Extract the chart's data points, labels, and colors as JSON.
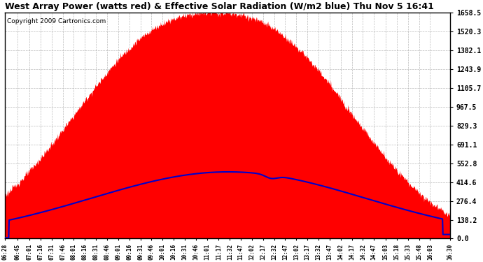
{
  "title": "West Array Power (watts red) & Effective Solar Radiation (W/m2 blue) Thu Nov 5 16:41",
  "copyright": "Copyright 2009 Cartronics.com",
  "background_color": "#ffffff",
  "plot_bg_color": "#ffffff",
  "y_ticks": [
    0.0,
    138.2,
    276.4,
    414.6,
    552.8,
    691.1,
    829.3,
    967.5,
    1105.7,
    1243.9,
    1382.1,
    1520.3,
    1658.5
  ],
  "x_labels": [
    "06:28",
    "06:45",
    "07:01",
    "07:16",
    "07:31",
    "07:46",
    "08:01",
    "08:16",
    "08:31",
    "08:46",
    "09:01",
    "09:16",
    "09:31",
    "09:46",
    "10:01",
    "10:16",
    "10:31",
    "10:46",
    "11:01",
    "11:17",
    "11:32",
    "11:47",
    "12:02",
    "12:17",
    "12:32",
    "12:47",
    "13:02",
    "13:17",
    "13:32",
    "13:47",
    "14:02",
    "14:17",
    "14:32",
    "14:47",
    "15:03",
    "15:18",
    "15:33",
    "15:48",
    "16:03",
    "16:30"
  ],
  "red_peak": 1658.5,
  "blue_peak": 490.0,
  "grid_color": "#aaaaaa",
  "red_color": "#ff0000",
  "blue_color": "#0000cc",
  "title_fontsize": 9,
  "copyright_fontsize": 6.5,
  "y_tick_fontsize": 7,
  "x_tick_fontsize": 5.5
}
